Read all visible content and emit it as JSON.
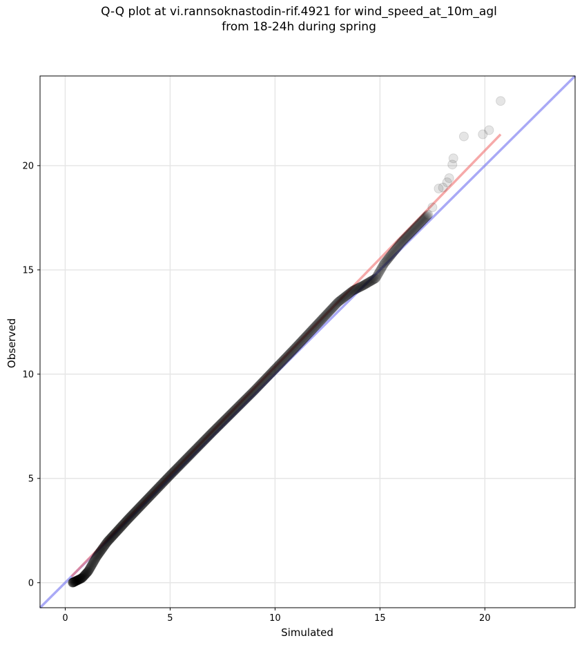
{
  "chart_data": {
    "type": "scatter",
    "title_line1": "Q-Q plot at vi.rannsoknastodin-rif.4921 for wind_speed_at_10m_agl",
    "title_line2": "from 18-24h during spring",
    "xlabel": "Simulated",
    "ylabel": "Observed",
    "xlim": [
      -1.2,
      24.3
    ],
    "ylim": [
      -1.2,
      24.3
    ],
    "xticks": [
      0,
      5,
      10,
      15,
      20
    ],
    "yticks": [
      0,
      5,
      10,
      15,
      20
    ],
    "grid": true,
    "colors": {
      "identity_line": "#6f6ff0",
      "fit_line": "#f07070",
      "points": "#000000",
      "grid": "#e6e6e6"
    },
    "identity_line": {
      "x": [
        -1.2,
        24.3
      ],
      "y": [
        -1.2,
        24.3
      ]
    },
    "fit_line": {
      "x": [
        0.3,
        20.75
      ],
      "y": [
        0.3,
        21.5
      ]
    },
    "points_body": {
      "x_start": 0.35,
      "x_end": 17.3,
      "count": 700,
      "anchors": [
        [
          0.35,
          0.0
        ],
        [
          0.8,
          0.22
        ],
        [
          1.1,
          0.55
        ],
        [
          1.5,
          1.25
        ],
        [
          2.0,
          1.95
        ],
        [
          3.0,
          3.05
        ],
        [
          5.0,
          5.15
        ],
        [
          7.0,
          7.2
        ],
        [
          9.0,
          9.2
        ],
        [
          11.0,
          11.3
        ],
        [
          13.0,
          13.45
        ],
        [
          13.7,
          14.0
        ],
        [
          14.2,
          14.25
        ],
        [
          14.8,
          14.6
        ],
        [
          15.2,
          15.3
        ],
        [
          16.0,
          16.3
        ],
        [
          17.3,
          17.65
        ]
      ]
    },
    "points_tail": {
      "x": [
        17.5,
        17.8,
        18.0,
        18.2,
        18.3,
        18.45,
        18.5,
        19.0,
        19.9,
        20.2,
        20.75
      ],
      "y": [
        18.0,
        18.9,
        18.95,
        19.2,
        19.4,
        20.05,
        20.35,
        21.4,
        21.5,
        21.7,
        23.1
      ]
    }
  }
}
